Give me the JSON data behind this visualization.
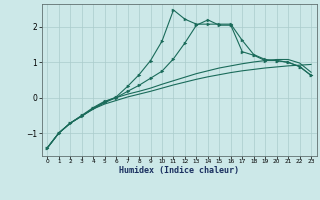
{
  "xlabel": "Humidex (Indice chaleur)",
  "background_color": "#cce8e8",
  "grid_color": "#aacccc",
  "line_color": "#1a6b5a",
  "xlim": [
    -0.5,
    23.5
  ],
  "ylim": [
    -1.65,
    2.65
  ],
  "xticks": [
    0,
    1,
    2,
    3,
    4,
    5,
    6,
    7,
    8,
    9,
    10,
    11,
    12,
    13,
    14,
    15,
    16,
    17,
    18,
    19,
    20,
    21,
    22,
    23
  ],
  "yticks": [
    -1,
    0,
    1,
    2
  ],
  "curve1_x": [
    0,
    1,
    2,
    3,
    4,
    5,
    6,
    7,
    8,
    9,
    10,
    11,
    12,
    13,
    14,
    15,
    16,
    17,
    18,
    19,
    20,
    21,
    22,
    23
  ],
  "curve1_y": [
    -1.42,
    -1.0,
    -0.72,
    -0.52,
    -0.32,
    -0.18,
    -0.08,
    0.02,
    0.1,
    0.18,
    0.27,
    0.36,
    0.44,
    0.52,
    0.59,
    0.65,
    0.71,
    0.76,
    0.8,
    0.84,
    0.87,
    0.9,
    0.92,
    0.94
  ],
  "curve2_x": [
    0,
    1,
    2,
    3,
    4,
    5,
    6,
    7,
    8,
    9,
    10,
    11,
    12,
    13,
    14,
    15,
    16,
    17,
    18,
    19,
    20,
    21,
    22,
    23
  ],
  "curve2_y": [
    -1.42,
    -1.0,
    -0.72,
    -0.52,
    -0.32,
    -0.14,
    0.0,
    0.1,
    0.18,
    0.27,
    0.38,
    0.48,
    0.58,
    0.68,
    0.76,
    0.84,
    0.9,
    0.96,
    1.01,
    1.05,
    1.08,
    1.08,
    0.98,
    0.72
  ],
  "curve3_x": [
    0,
    1,
    2,
    3,
    4,
    5,
    6,
    7,
    8,
    9,
    10,
    11,
    12,
    13,
    14,
    15,
    16,
    17,
    18,
    19,
    20,
    21,
    22,
    23
  ],
  "curve3_y": [
    -1.42,
    -1.0,
    -0.72,
    -0.5,
    -0.28,
    -0.1,
    0.0,
    0.18,
    0.35,
    0.55,
    0.75,
    1.1,
    1.55,
    2.05,
    2.2,
    2.05,
    2.05,
    1.3,
    1.2,
    1.05,
    1.05,
    1.0,
    0.88,
    0.63
  ],
  "curve4_x": [
    0,
    1,
    2,
    3,
    4,
    5,
    6,
    7,
    8,
    9,
    10,
    11,
    12,
    13,
    14,
    15,
    16,
    17,
    18,
    19,
    20,
    21,
    22,
    23
  ],
  "curve4_y": [
    -1.42,
    -1.0,
    -0.72,
    -0.52,
    -0.3,
    -0.12,
    0.02,
    0.32,
    0.65,
    1.05,
    1.6,
    2.48,
    2.22,
    2.08,
    2.08,
    2.08,
    2.08,
    1.62,
    1.22,
    1.08,
    1.05,
    1.0,
    0.88,
    0.63
  ]
}
